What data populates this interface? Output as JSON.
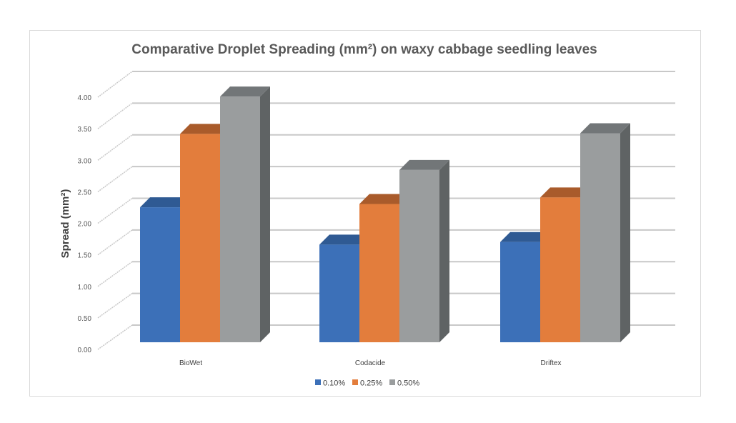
{
  "chart_data": {
    "type": "bar",
    "style": "3d-clustered-column",
    "title": "Comparative Droplet Spreading (mm²) on waxy cabbage seedling leaves",
    "xlabel": "",
    "ylabel": "Spread (mm²)",
    "ylim": [
      0,
      4
    ],
    "yticks": [
      "0.00",
      "0.50",
      "1.00",
      "1.50",
      "2.00",
      "2.50",
      "3.00",
      "3.50",
      "4.00"
    ],
    "grid": true,
    "legend_position": "bottom",
    "categories": [
      "BioWet",
      "Codacide",
      "Driftex"
    ],
    "series": [
      {
        "name": "0.10%",
        "color": "#3c70b8",
        "top": "#2f5a93",
        "values": [
          2.06,
          1.49,
          1.53
        ]
      },
      {
        "name": "0.25%",
        "color": "#e37d3c",
        "top": "#a95b2b",
        "values": [
          3.18,
          2.11,
          2.21
        ]
      },
      {
        "name": "0.50%",
        "color": "#9a9d9e",
        "top": "#727678",
        "side": "#5f6364",
        "values": [
          3.75,
          2.63,
          3.19
        ]
      }
    ]
  }
}
